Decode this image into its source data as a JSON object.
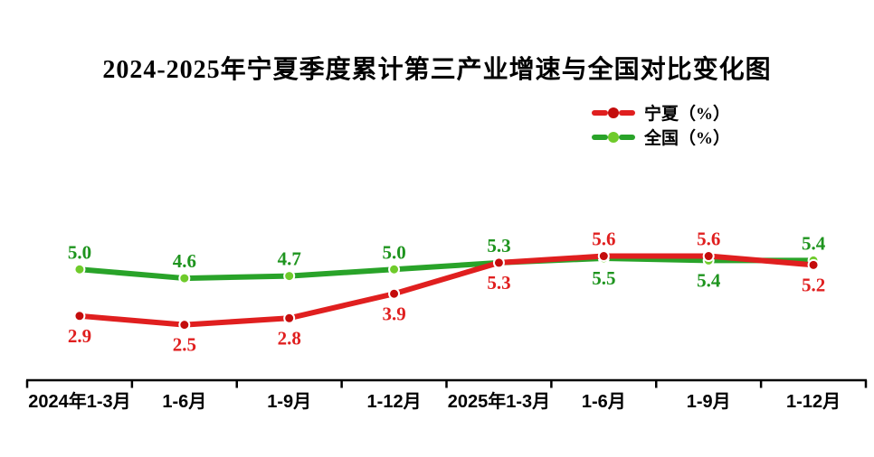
{
  "title": "2024-2025年宁夏季度累计第三产业增速与全国对比变化图",
  "chart_data": {
    "type": "line",
    "categories": [
      "2024年1-3月",
      "1-6月",
      "1-9月",
      "1-12月",
      "2025年1-3月",
      "1-6月",
      "1-9月",
      "1-12月"
    ],
    "series": [
      {
        "name": "宁夏（%）",
        "values": [
          2.9,
          2.5,
          2.8,
          3.9,
          5.3,
          5.6,
          5.6,
          5.2
        ],
        "line_color": "#e01f1f",
        "marker_color": "#c40c0c",
        "label_color": "#e01f1f",
        "label_side": [
          "below",
          "below",
          "below",
          "below",
          "below",
          "above",
          "above",
          "below"
        ]
      },
      {
        "name": "全国（%）",
        "values": [
          5.0,
          4.6,
          4.7,
          5.0,
          5.3,
          5.5,
          5.4,
          5.4
        ],
        "line_color": "#29a329",
        "marker_color": "#6fcb2b",
        "label_color": "#1e941e",
        "label_side": [
          "above",
          "above",
          "above",
          "above",
          "above",
          "below",
          "below",
          "above"
        ]
      }
    ],
    "ylim": [
      0,
      8.5
    ],
    "grid": false,
    "legend_position": "upper-right",
    "axis_color": "#000000",
    "background": "#ffffff",
    "value_format": "one-decimal"
  }
}
